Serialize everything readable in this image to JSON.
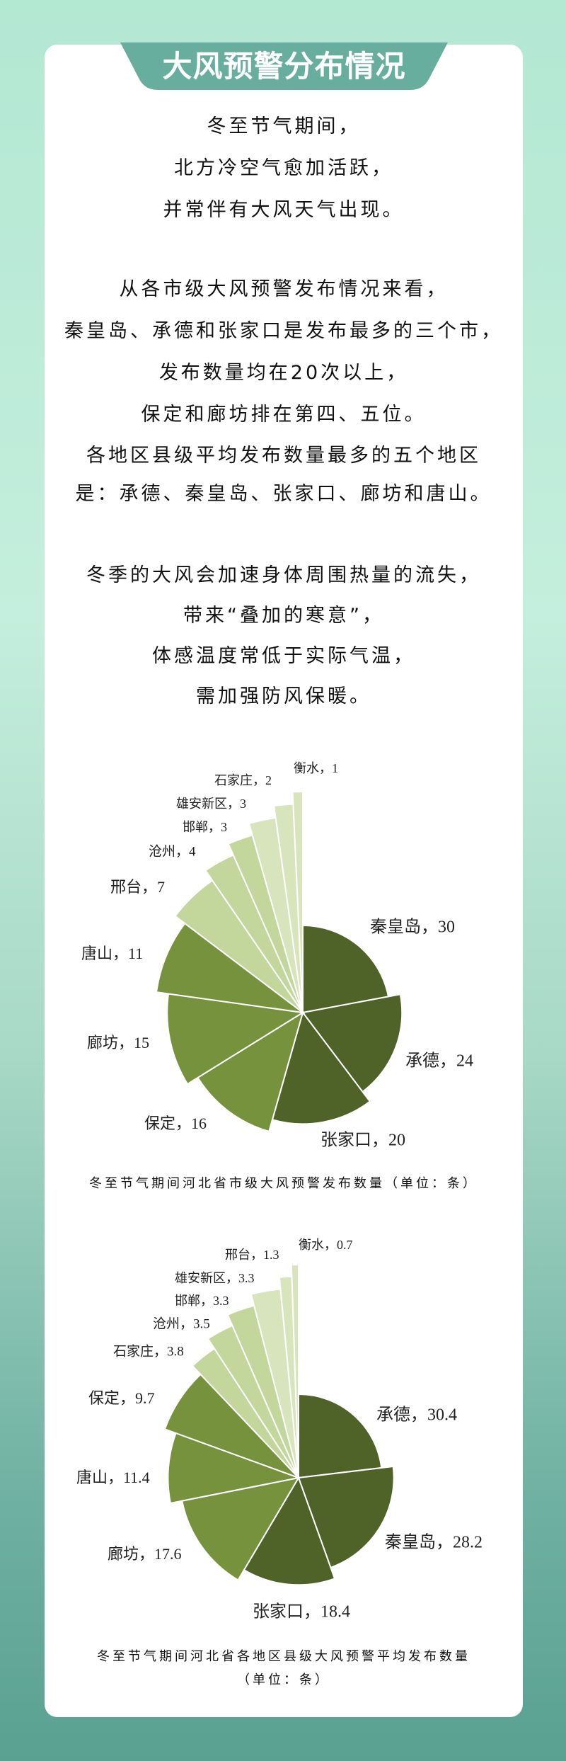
{
  "header": {
    "title": "大风预警分布情况"
  },
  "paragraphs": [
    [
      "冬至节气期间，",
      "北方冷空气愈加活跃，",
      "并常伴有大风天气出现。"
    ],
    [
      "从各市级大风预警发布情况来看，",
      "秦皇岛、承德和张家口是发布最多的三个市，",
      "发布数量均在20次以上，",
      "保定和廊坊排在第四、五位。",
      "各地区县级平均发布数量最多的五个地区",
      "是：承德、秦皇岛、张家口、廊坊和唐山。"
    ],
    [
      "冬季的大风会加速身体周围热量的流失，",
      "带来“叠加的寒意”，",
      "体感温度常低于实际气温，",
      "需加强防风保暖。"
    ]
  ],
  "colors": {
    "background_top": "#b3e8d3",
    "background_bottom": "#5aa192",
    "banner": "#67ae9f",
    "card": "#ffffff"
  },
  "chart_data": [
    {
      "type": "pie",
      "variant": "rose (angle and radius vary)",
      "title": "冬至节气期间河北省市级大风预警发布数量（单位：条）",
      "categories": [
        "秦皇岛",
        "承德",
        "张家口",
        "保定",
        "廊坊",
        "唐山",
        "邢台",
        "沧州",
        "邯郸",
        "雄安新区",
        "石家庄",
        "衡水"
      ],
      "values": [
        30,
        24,
        20,
        16,
        15,
        11,
        7,
        4,
        3,
        3,
        2,
        1
      ],
      "labels": [
        "秦皇岛，30",
        "承德，24",
        "张家口，20",
        "保定，16",
        "廊坊，15",
        "唐山，11",
        "邢台，7",
        "沧州，4",
        "邯郸，3",
        "雄安新区，3",
        "石家庄，2",
        "衡水，1"
      ],
      "colors": [
        "#4f6228",
        "#4f6228",
        "#4f6228",
        "#76923c",
        "#76923c",
        "#76923c",
        "#c3d69b",
        "#c3d69b",
        "#c3d69b",
        "#d7e4bc",
        "#d7e4bc",
        "#d7e4bc"
      ]
    },
    {
      "type": "pie",
      "variant": "rose (angle and radius vary)",
      "title": "冬至节气期间河北省各地区县级大风预警平均发布数量",
      "subtitle": "（单位：条）",
      "categories": [
        "承德",
        "秦皇岛",
        "张家口",
        "廊坊",
        "唐山",
        "保定",
        "石家庄",
        "沧州",
        "邯郸",
        "雄安新区",
        "邢台",
        "衡水"
      ],
      "values": [
        30.4,
        28.2,
        18.4,
        17.6,
        11.4,
        9.7,
        3.8,
        3.5,
        3.3,
        3.3,
        1.3,
        0.7
      ],
      "labels": [
        "承德，30.4",
        "秦皇岛，28.2",
        "张家口，18.4",
        "廊坊，17.6",
        "唐山，11.4",
        "保定，9.7",
        "石家庄，3.8",
        "沧州，3.5",
        "邯郸，3.3",
        "雄安新区，3.3",
        "邢台，1.3",
        "衡水，0.7"
      ],
      "colors": [
        "#4f6228",
        "#4f6228",
        "#4f6228",
        "#76923c",
        "#76923c",
        "#76923c",
        "#c3d69b",
        "#c3d69b",
        "#c3d69b",
        "#d7e4bc",
        "#d7e4bc",
        "#d7e4bc"
      ]
    }
  ]
}
